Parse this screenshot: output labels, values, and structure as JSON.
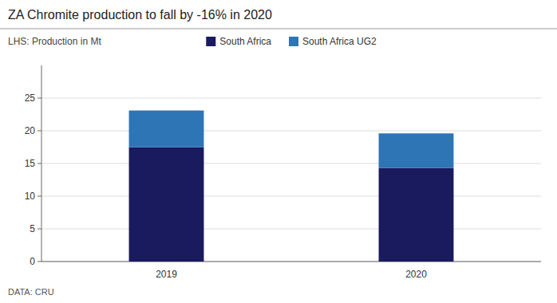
{
  "chart_data": {
    "type": "bar",
    "title": "ZA Chromite production to fall by -16% in 2020",
    "subtitle": "LHS: Production in Mt",
    "annotations": [
      "DATA: CRU"
    ],
    "categories": [
      "2019",
      "2020"
    ],
    "series": [
      {
        "name": "South Africa",
        "color": "#1a1a5e",
        "values": [
          17.5,
          14.3
        ]
      },
      {
        "name": "South Africa UG2",
        "color": "#2e75b6",
        "values": [
          5.6,
          5.3
        ]
      }
    ],
    "stacked": true,
    "ylim": [
      0,
      30
    ],
    "yticks": [
      0,
      5,
      10,
      15,
      20,
      25
    ],
    "grid": true,
    "legend": "top"
  }
}
